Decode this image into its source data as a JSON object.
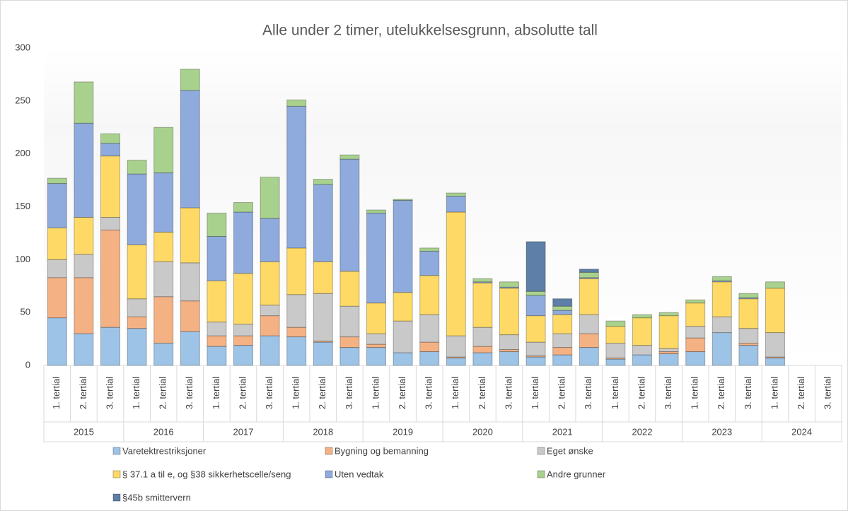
{
  "chart_data": {
    "type": "stacked_bar",
    "title": "Alle under 2 timer, utelukkelsesgrunn, absolutte tall",
    "categories": [
      "1. tertial",
      "2. tertial",
      "3. tertial",
      "1. tertial",
      "2. tertial",
      "3. tertial",
      "1. tertial",
      "2. tertial",
      "3. tertial",
      "1. tertial",
      "2. tertial",
      "3. tertial",
      "1. tertial",
      "2. tertial",
      "3. tertial",
      "1. tertial",
      "2. tertial",
      "3. tertial",
      "1. tertial",
      "2. tertial",
      "3. tertial",
      "1. tertial",
      "2. tertial",
      "3. tertial",
      "1. tertial",
      "2. tertial",
      "3. tertial",
      "1. tertial",
      "2. tertial",
      "3. tertial"
    ],
    "groups": [
      "2015",
      "2016",
      "2017",
      "2018",
      "2019",
      "2020",
      "2021",
      "2022",
      "2023",
      "2024"
    ],
    "ylim": [
      0,
      300
    ],
    "yticks": [
      0,
      50,
      100,
      150,
      200,
      250,
      300
    ],
    "grid": false,
    "legend": "bottom",
    "series": [
      {
        "name": "Varetektrestriksjoner",
        "color": "#9dc3e6",
        "values": [
          45,
          30,
          36,
          35,
          21,
          32,
          18,
          19,
          28,
          27,
          22,
          17,
          17,
          12,
          13,
          7,
          12,
          13,
          8,
          10,
          17,
          6,
          10,
          11,
          13,
          31,
          19,
          7,
          null,
          null
        ]
      },
      {
        "name": "Bygning og bemanning",
        "color": "#f4b183",
        "values": [
          38,
          53,
          92,
          11,
          44,
          29,
          10,
          9,
          19,
          9,
          1,
          10,
          3,
          0,
          9,
          1,
          6,
          2,
          1,
          7,
          13,
          1,
          0,
          2,
          13,
          0,
          2,
          1,
          null,
          null
        ]
      },
      {
        "name": "Eget ønske",
        "color": "#c9c9c9",
        "values": [
          17,
          22,
          12,
          17,
          33,
          36,
          13,
          11,
          10,
          31,
          45,
          29,
          10,
          30,
          26,
          20,
          18,
          14,
          13,
          13,
          18,
          14,
          9,
          3,
          11,
          15,
          14,
          23,
          null,
          null
        ]
      },
      {
        "name": "§ 37.1 a til e, og §38 sikkerhetscelle/seng",
        "color": "#ffd966",
        "values": [
          30,
          35,
          58,
          51,
          28,
          52,
          39,
          48,
          41,
          44,
          30,
          33,
          29,
          27,
          37,
          117,
          42,
          44,
          25,
          18,
          34,
          16,
          26,
          31,
          22,
          33,
          28,
          42,
          null,
          null
        ]
      },
      {
        "name": "Uten vedtak",
        "color": "#8faadc",
        "values": [
          42,
          89,
          12,
          67,
          56,
          111,
          42,
          58,
          41,
          134,
          73,
          106,
          85,
          87,
          23,
          15,
          1,
          1,
          19,
          4,
          1,
          0,
          0,
          0,
          0,
          1,
          1,
          0,
          null,
          null
        ]
      },
      {
        "name": "Andre grunner",
        "color": "#a9d18e",
        "values": [
          5,
          39,
          9,
          13,
          43,
          20,
          22,
          9,
          39,
          6,
          5,
          4,
          3,
          1,
          3,
          3,
          3,
          5,
          4,
          4,
          5,
          5,
          3,
          3,
          3,
          4,
          4,
          6,
          null,
          null
        ]
      },
      {
        "name": "§45b smittervern",
        "color": "#5e7fa8",
        "values": [
          0,
          0,
          0,
          0,
          0,
          0,
          0,
          0,
          0,
          0,
          0,
          0,
          0,
          0,
          0,
          0,
          0,
          0,
          47,
          7,
          3,
          0,
          0,
          0,
          0,
          0,
          0,
          0,
          null,
          null
        ]
      }
    ]
  }
}
